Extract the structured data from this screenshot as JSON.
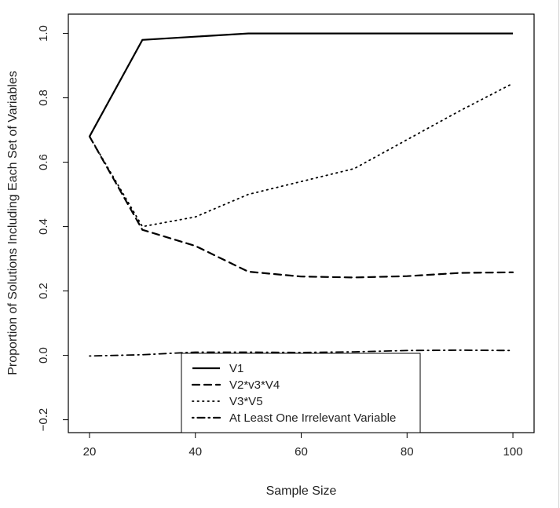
{
  "chart_data": {
    "type": "line",
    "title": "",
    "xlabel": "Sample Size",
    "ylabel": "Proportion of Solutions Including Each Set of Variables",
    "xlim": [
      16,
      104
    ],
    "ylim": [
      -0.24,
      1.06
    ],
    "xticks": [
      20,
      40,
      60,
      80,
      100
    ],
    "yticks": [
      -0.2,
      0.0,
      0.2,
      0.4,
      0.6,
      0.8,
      1.0
    ],
    "xtick_labels": [
      "20",
      "40",
      "60",
      "80",
      "100"
    ],
    "ytick_labels": [
      "−0.2",
      "0.0",
      "0.2",
      "0.4",
      "0.6",
      "0.8",
      "1.0"
    ],
    "grid": false,
    "legend_position": "bottom-center",
    "x": [
      20,
      30,
      40,
      50,
      60,
      70,
      80,
      90,
      100
    ],
    "series": [
      {
        "name": "V1",
        "style": "solid",
        "values": [
          0.68,
          0.98,
          0.99,
          1.0,
          1.0,
          1.0,
          1.0,
          1.0,
          1.0
        ]
      },
      {
        "name": "V2*v3*V4",
        "style": "dashed",
        "values": [
          0.68,
          0.39,
          0.34,
          0.26,
          0.245,
          0.242,
          0.246,
          0.256,
          0.258
        ]
      },
      {
        "name": "V3*V5",
        "style": "dotted",
        "values": [
          0.68,
          0.4,
          0.43,
          0.5,
          0.54,
          0.58,
          0.67,
          0.76,
          0.845
        ]
      },
      {
        "name": "At Least One Irrelevant Variable",
        "style": "dotdash",
        "values": [
          -0.002,
          0.002,
          0.01,
          0.01,
          0.009,
          0.011,
          0.015,
          0.016,
          0.015
        ]
      }
    ]
  }
}
